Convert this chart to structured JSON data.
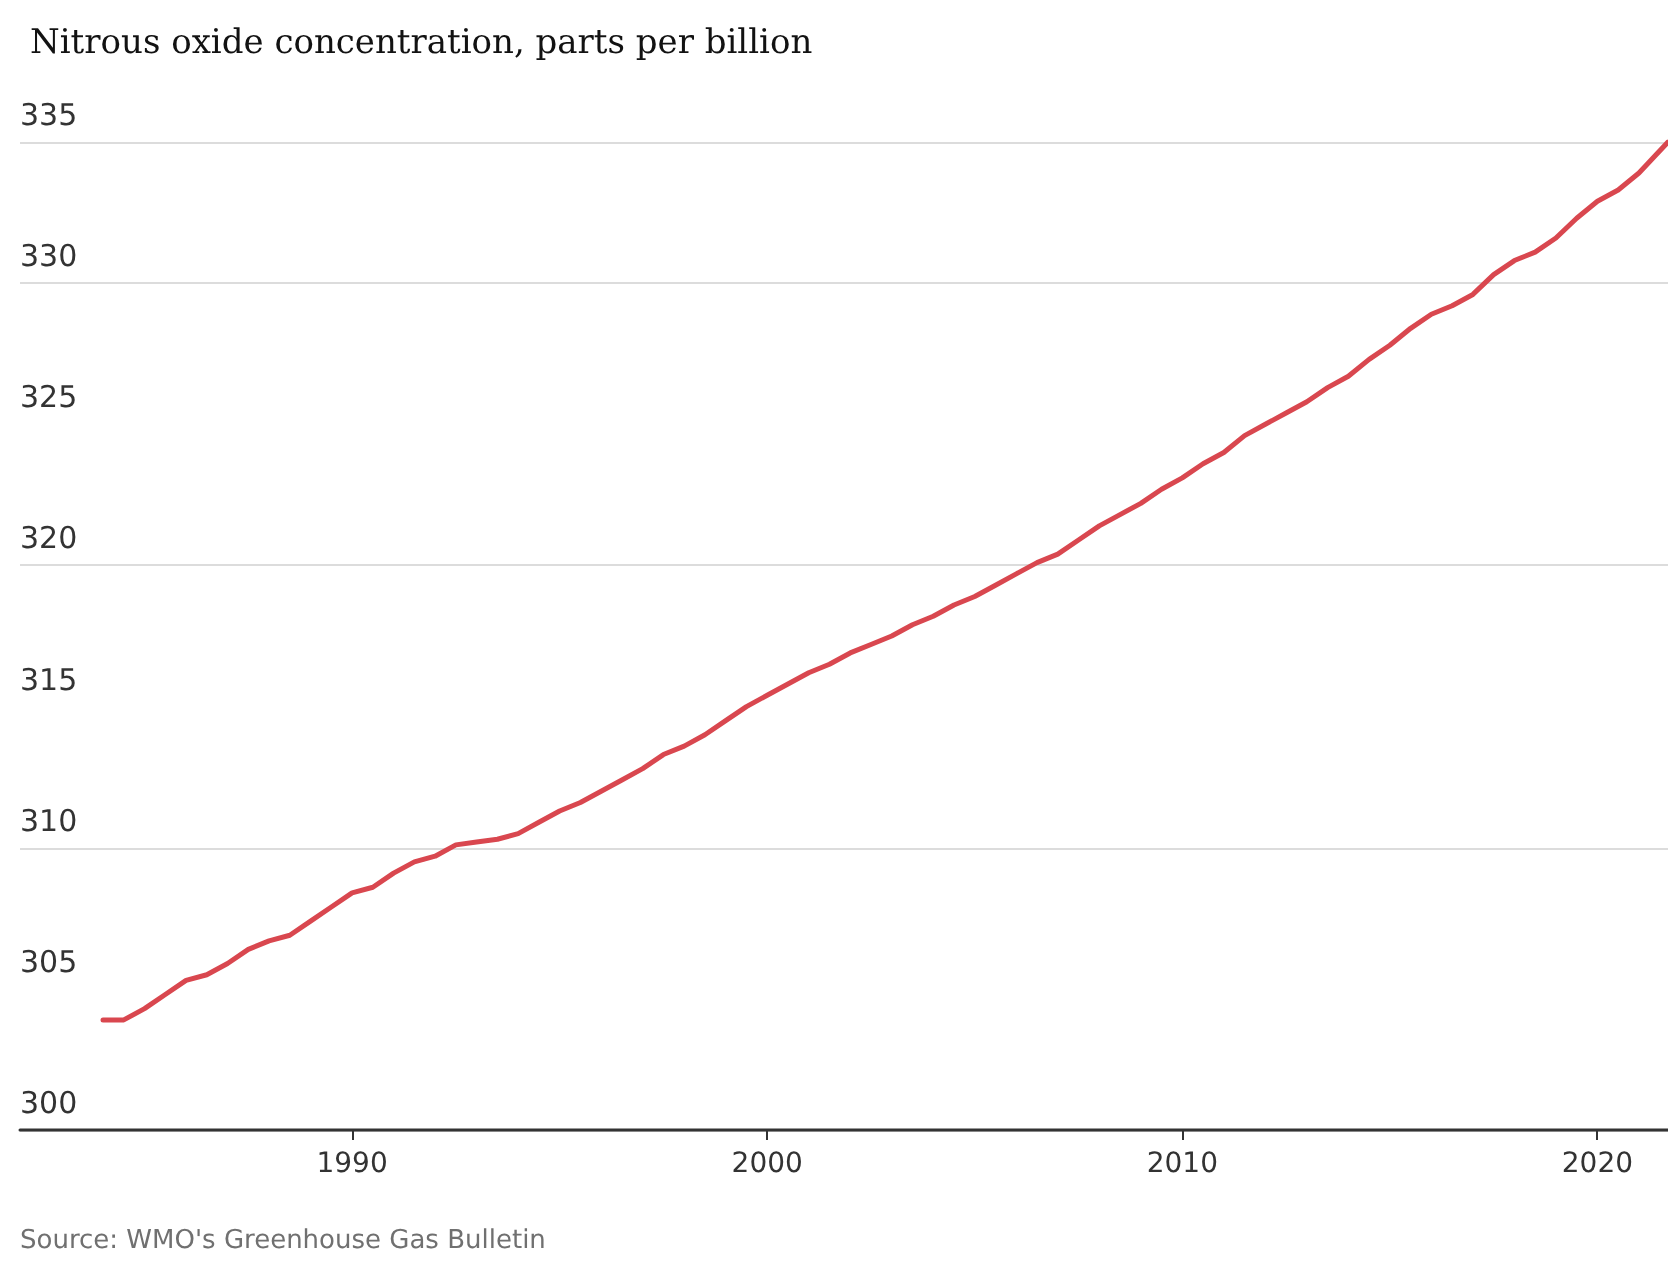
{
  "chart_data": {
    "type": "line",
    "title": "Nitrous oxide concentration, parts per billion",
    "annotations": [
      "Source: WMO's Greenhouse Gas Bulletin"
    ],
    "x": [
      1984.0,
      1984.5,
      1985.0,
      1985.5,
      1986.0,
      1986.5,
      1987.0,
      1987.5,
      1988.0,
      1988.5,
      1989.0,
      1989.5,
      1990.0,
      1990.5,
      1991.0,
      1991.5,
      1992.0,
      1992.5,
      1993.0,
      1993.5,
      1994.0,
      1994.5,
      1995.0,
      1995.5,
      1996.0,
      1996.5,
      1997.0,
      1997.5,
      1998.0,
      1998.5,
      1999.0,
      1999.5,
      2000.0,
      2000.5,
      2001.0,
      2001.5,
      2002.0,
      2002.5,
      2003.0,
      2003.5,
      2004.0,
      2004.5,
      2005.0,
      2005.5,
      2006.0,
      2006.5,
      2007.0,
      2007.5,
      2008.0,
      2008.5,
      2009.0,
      2009.5,
      2010.0,
      2010.5,
      2011.0,
      2011.5,
      2012.0,
      2012.5,
      2013.0,
      2013.5,
      2014.0,
      2014.5,
      2015.0,
      2015.5,
      2016.0,
      2016.5,
      2017.0,
      2017.5,
      2018.0,
      2018.5,
      2019.0,
      2019.5,
      2020.0,
      2020.5,
      2021.0,
      2021.7
    ],
    "series": [
      {
        "color": "#d9474f",
        "values": [
          303.9,
          303.9,
          304.3,
          304.8,
          305.3,
          305.5,
          305.9,
          306.4,
          306.7,
          306.9,
          307.4,
          307.9,
          308.4,
          308.6,
          309.1,
          309.5,
          309.7,
          310.1,
          310.2,
          310.3,
          310.5,
          310.9,
          311.3,
          311.6,
          312.0,
          312.4,
          312.8,
          313.3,
          313.6,
          314.0,
          314.5,
          315.0,
          315.4,
          315.8,
          316.2,
          316.5,
          316.9,
          317.2,
          317.5,
          317.9,
          318.2,
          318.6,
          318.9,
          319.3,
          319.7,
          320.1,
          320.4,
          320.9,
          321.4,
          321.8,
          322.2,
          322.7,
          323.1,
          323.6,
          324.0,
          324.6,
          325.0,
          325.4,
          325.8,
          326.3,
          326.7,
          327.3,
          327.8,
          328.4,
          328.9,
          329.2,
          329.6,
          330.3,
          330.8,
          331.1,
          331.6,
          332.3,
          332.9,
          333.3,
          333.9,
          335.0
        ]
      }
    ],
    "xlim": [
      1982,
      2021.7
    ],
    "xticks": [
      1990,
      2000,
      2010,
      2020
    ],
    "ylim": [
      300,
      335
    ],
    "yticks": [
      300,
      305,
      310,
      315,
      320,
      325,
      330,
      335
    ],
    "grid": "y",
    "marker": "none",
    "line_style": "solid"
  }
}
